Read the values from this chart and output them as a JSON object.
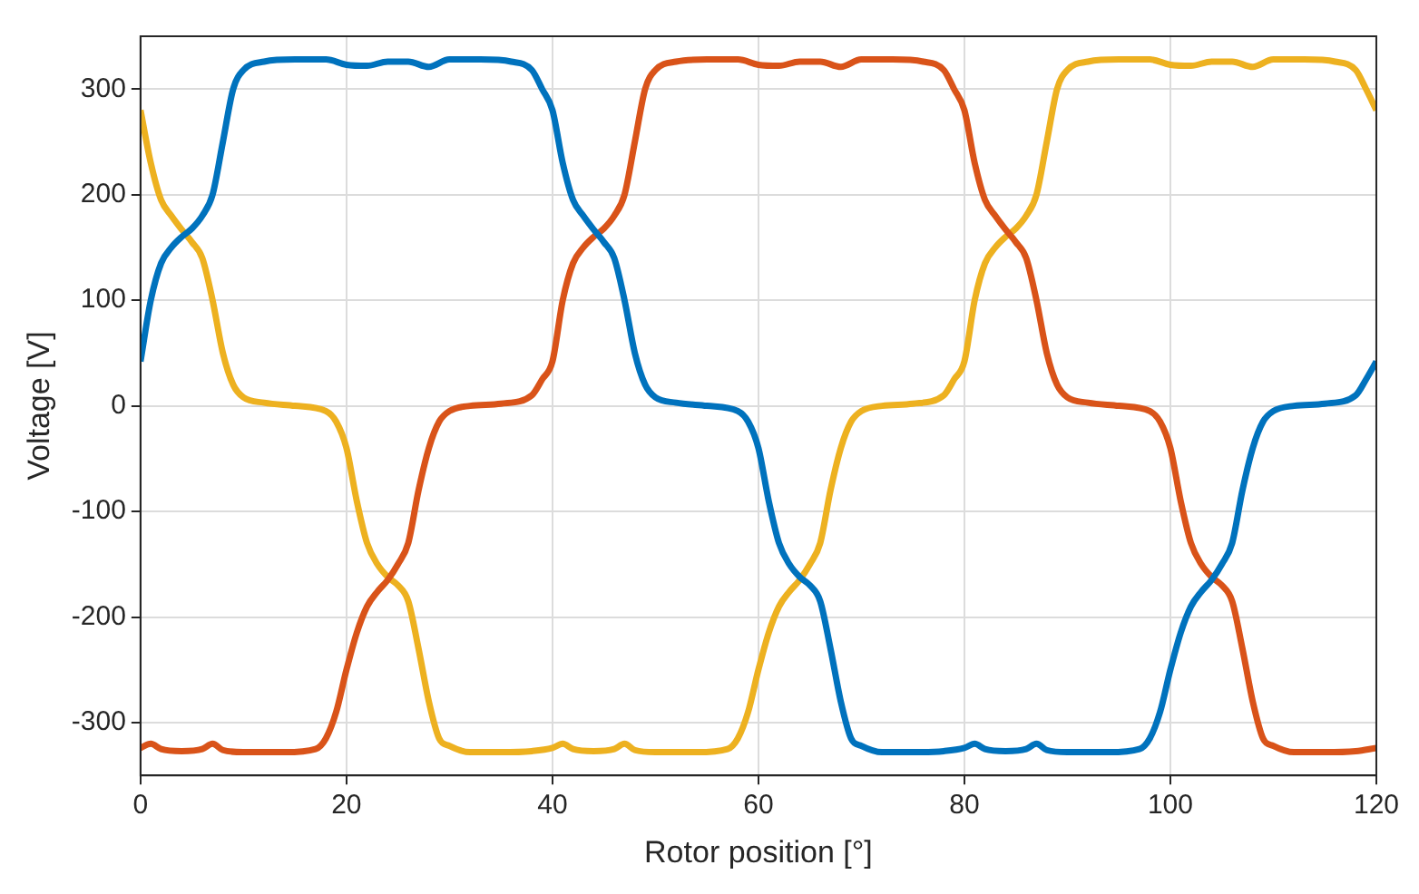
{
  "chart_data": {
    "type": "line",
    "xlabel": "Rotor position [°]",
    "ylabel": "Voltage [V]",
    "xlim": [
      0,
      120
    ],
    "xticks": [
      0,
      20,
      40,
      60,
      80,
      100,
      120
    ],
    "ylim": [
      -350,
      350
    ],
    "yticks": [
      -300,
      -200,
      -100,
      0,
      100,
      200,
      300
    ],
    "grid": true,
    "legend": false,
    "marker": "none",
    "line_style": "solid",
    "series": [
      {
        "color": "#0072bd",
        "x": [
          0,
          1,
          2,
          3,
          4,
          5,
          6,
          7,
          8,
          9,
          10,
          12,
          15,
          18,
          20,
          22,
          24,
          26,
          28,
          30,
          33,
          36,
          38,
          39,
          40,
          41,
          42,
          43,
          44,
          45,
          46,
          47,
          48,
          49,
          50,
          52,
          55,
          58,
          59,
          60,
          61,
          62,
          63,
          64,
          65,
          66,
          67,
          68,
          69,
          70,
          72,
          75,
          78,
          80,
          81,
          82,
          84,
          86,
          87,
          88,
          90,
          94,
          97,
          98,
          99,
          100,
          101,
          102,
          103,
          104,
          105,
          106,
          107,
          108,
          109,
          110,
          112,
          115,
          118,
          119,
          120
        ],
        "values": [
          42,
          100,
          135,
          150,
          160,
          168,
          180,
          200,
          250,
          300,
          318,
          326,
          328,
          328,
          323,
          322,
          326,
          326,
          321,
          328,
          328,
          326,
          318,
          300,
          280,
          230,
          195,
          180,
          167,
          155,
          140,
          100,
          50,
          20,
          8,
          3,
          0,
          -5,
          -15,
          -40,
          -90,
          -130,
          -150,
          -162,
          -170,
          -185,
          -230,
          -280,
          -315,
          -322,
          -328,
          -328,
          -327,
          -324,
          -320,
          -325,
          -327,
          -325,
          -320,
          -326,
          -328,
          -328,
          -325,
          -315,
          -290,
          -250,
          -215,
          -190,
          -176,
          -165,
          -150,
          -130,
          -80,
          -40,
          -15,
          -5,
          0,
          2,
          10,
          25,
          42
        ]
      },
      {
        "color": "#d95319",
        "x": [
          0,
          1,
          2,
          4,
          6,
          7,
          8,
          10,
          14,
          17,
          18,
          19,
          20,
          21,
          22,
          23,
          24,
          25,
          26,
          27,
          28,
          29,
          30,
          32,
          35,
          38,
          39,
          40,
          41,
          42,
          43,
          44,
          45,
          46,
          47,
          48,
          49,
          50,
          52,
          55,
          58,
          60,
          62,
          64,
          66,
          68,
          70,
          73,
          76,
          78,
          79,
          80,
          81,
          82,
          83,
          84,
          85,
          86,
          87,
          88,
          89,
          90,
          92,
          95,
          98,
          99,
          100,
          101,
          102,
          103,
          104,
          105,
          106,
          107,
          108,
          109,
          110,
          112,
          115,
          118,
          120
        ],
        "values": [
          -324,
          -320,
          -325,
          -327,
          -325,
          -320,
          -326,
          -328,
          -328,
          -325,
          -315,
          -290,
          -250,
          -215,
          -190,
          -176,
          -165,
          -150,
          -130,
          -80,
          -40,
          -15,
          -5,
          0,
          2,
          10,
          25,
          42,
          100,
          135,
          150,
          160,
          168,
          180,
          200,
          250,
          300,
          318,
          326,
          328,
          328,
          323,
          322,
          326,
          326,
          321,
          328,
          328,
          326,
          318,
          300,
          280,
          230,
          195,
          180,
          167,
          155,
          140,
          100,
          50,
          20,
          8,
          3,
          0,
          -5,
          -15,
          -40,
          -90,
          -130,
          -150,
          -162,
          -170,
          -185,
          -230,
          -280,
          -315,
          -322,
          -328,
          -328,
          -327,
          -324
        ]
      },
      {
        "color": "#edb120",
        "x": [
          0,
          1,
          2,
          3,
          4,
          5,
          6,
          7,
          8,
          9,
          10,
          12,
          15,
          18,
          19,
          20,
          21,
          22,
          23,
          24,
          25,
          26,
          27,
          28,
          29,
          30,
          32,
          35,
          38,
          40,
          41,
          42,
          44,
          46,
          47,
          48,
          50,
          54,
          57,
          58,
          59,
          60,
          61,
          62,
          63,
          64,
          65,
          66,
          67,
          68,
          69,
          70,
          72,
          75,
          78,
          79,
          80,
          81,
          82,
          83,
          84,
          85,
          86,
          87,
          88,
          89,
          90,
          92,
          95,
          98,
          100,
          102,
          104,
          106,
          108,
          110,
          113,
          116,
          118,
          119,
          120
        ],
        "values": [
          280,
          230,
          195,
          180,
          167,
          155,
          140,
          100,
          50,
          20,
          8,
          3,
          0,
          -5,
          -15,
          -40,
          -90,
          -130,
          -150,
          -162,
          -170,
          -185,
          -230,
          -280,
          -315,
          -322,
          -328,
          -328,
          -327,
          -324,
          -320,
          -325,
          -327,
          -325,
          -320,
          -326,
          -328,
          -328,
          -325,
          -315,
          -290,
          -250,
          -215,
          -190,
          -176,
          -165,
          -150,
          -130,
          -80,
          -40,
          -15,
          -5,
          0,
          2,
          10,
          25,
          42,
          100,
          135,
          150,
          160,
          168,
          180,
          200,
          250,
          300,
          318,
          326,
          328,
          328,
          323,
          322,
          326,
          326,
          321,
          328,
          328,
          326,
          318,
          300,
          280
        ]
      }
    ]
  }
}
